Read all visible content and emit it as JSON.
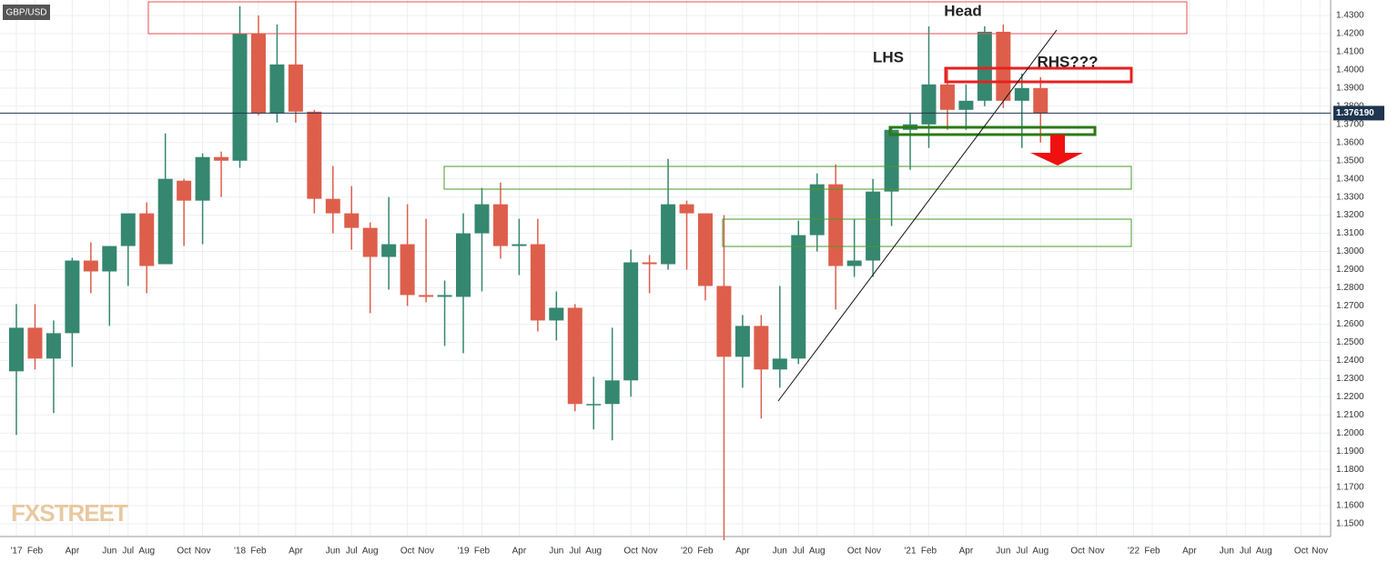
{
  "chart_data": {
    "type": "candlestick",
    "title": "GBP/USD",
    "annotations": [
      "Head",
      "LHS",
      "RHS???"
    ],
    "watermark": "FXSTREET",
    "up_color": "#35876f",
    "down_color": "#dd5f4b",
    "current_price": {
      "value": 1.37619,
      "label": "1.376190"
    },
    "x": [
      0,
      1,
      2,
      3,
      4,
      5,
      6,
      7,
      8,
      9,
      10,
      11,
      12,
      13,
      14,
      15,
      16,
      17,
      18,
      19,
      20,
      21,
      22,
      23,
      24,
      25,
      26,
      27,
      28,
      29,
      30,
      31,
      32,
      33,
      34,
      35,
      36,
      37,
      38,
      39,
      40,
      41,
      42,
      43,
      44,
      45,
      46,
      47,
      48,
      49,
      50,
      51,
      52,
      53,
      54,
      55
    ],
    "open": [
      1.234,
      1.258,
      1.241,
      1.255,
      1.295,
      1.289,
      1.303,
      1.321,
      1.293,
      1.339,
      1.328,
      1.352,
      1.35,
      1.42,
      1.376,
      1.403,
      1.377,
      1.329,
      1.321,
      1.313,
      1.297,
      1.304,
      1.276,
      1.275,
      1.275,
      1.31,
      1.326,
      1.303,
      1.304,
      1.262,
      1.269,
      1.216,
      1.216,
      1.229,
      1.294,
      1.293,
      1.326,
      1.321,
      1.281,
      1.242,
      1.259,
      1.235,
      1.241,
      1.309,
      1.337,
      1.292,
      1.295,
      1.333,
      1.367,
      1.37,
      1.392,
      1.378,
      1.383,
      1.421,
      1.383,
      1.39
    ],
    "high": [
      1.271,
      1.271,
      1.262,
      1.2965,
      1.305,
      1.303,
      1.321,
      1.327,
      1.365,
      1.34,
      1.354,
      1.355,
      1.435,
      1.43,
      1.425,
      1.438,
      1.378,
      1.347,
      1.336,
      1.316,
      1.33,
      1.326,
      1.318,
      1.284,
      1.321,
      1.335,
      1.338,
      1.318,
      1.318,
      1.278,
      1.271,
      1.231,
      1.258,
      1.301,
      1.298,
      1.351,
      1.328,
      1.321,
      1.32,
      1.265,
      1.265,
      1.281,
      1.317,
      1.343,
      1.348,
      1.318,
      1.34,
      1.368,
      1.376,
      1.424,
      1.4,
      1.392,
      1.424,
      1.425,
      1.398,
      1.396
    ],
    "low": [
      1.199,
      1.235,
      1.211,
      1.2365,
      1.277,
      1.259,
      1.281,
      1.277,
      1.293,
      1.303,
      1.304,
      1.33,
      1.346,
      1.375,
      1.371,
      1.371,
      1.321,
      1.31,
      1.301,
      1.266,
      1.279,
      1.27,
      1.272,
      1.248,
      1.244,
      1.278,
      1.296,
      1.287,
      1.256,
      1.251,
      1.212,
      1.202,
      1.196,
      1.22,
      1.277,
      1.29,
      1.29,
      1.273,
      1.141,
      1.225,
      1.208,
      1.225,
      1.238,
      1.3,
      1.268,
      1.286,
      1.286,
      1.314,
      1.345,
      1.357,
      1.367,
      1.367,
      1.38,
      1.379,
      1.357,
      1.36
    ],
    "close": [
      1.258,
      1.241,
      1.255,
      1.295,
      1.289,
      1.303,
      1.321,
      1.292,
      1.34,
      1.328,
      1.352,
      1.35,
      1.42,
      1.376,
      1.403,
      1.377,
      1.329,
      1.321,
      1.313,
      1.297,
      1.304,
      1.276,
      1.275,
      1.276,
      1.31,
      1.326,
      1.303,
      1.304,
      1.262,
      1.269,
      1.216,
      1.216,
      1.229,
      1.294,
      1.293,
      1.326,
      1.321,
      1.281,
      1.242,
      1.259,
      1.235,
      1.241,
      1.309,
      1.337,
      1.292,
      1.295,
      1.333,
      1.367,
      1.37,
      1.392,
      1.378,
      1.383,
      1.421,
      1.383,
      1.39,
      1.376
    ],
    "xlim": [
      -0.88,
      70.58
    ],
    "ylim": [
      1.143,
      1.4385
    ],
    "grid": true,
    "xticks": [
      {
        "value": 0,
        "label": "'17"
      },
      {
        "value": 1,
        "label": "Feb"
      },
      {
        "value": 3,
        "label": "Apr"
      },
      {
        "value": 5,
        "label": "Jun"
      },
      {
        "value": 6,
        "label": "Jul"
      },
      {
        "value": 7,
        "label": "Aug"
      },
      {
        "value": 9,
        "label": "Oct"
      },
      {
        "value": 10,
        "label": "Nov"
      },
      {
        "value": 12,
        "label": "'18"
      },
      {
        "value": 13,
        "label": "Feb"
      },
      {
        "value": 15,
        "label": "Apr"
      },
      {
        "value": 17,
        "label": "Jun"
      },
      {
        "value": 18,
        "label": "Jul"
      },
      {
        "value": 19,
        "label": "Aug"
      },
      {
        "value": 21,
        "label": "Oct"
      },
      {
        "value": 22,
        "label": "Nov"
      },
      {
        "value": 24,
        "label": "'19"
      },
      {
        "value": 25,
        "label": "Feb"
      },
      {
        "value": 27,
        "label": "Apr"
      },
      {
        "value": 29,
        "label": "Jun"
      },
      {
        "value": 30,
        "label": "Jul"
      },
      {
        "value": 31,
        "label": "Aug"
      },
      {
        "value": 33,
        "label": "Oct"
      },
      {
        "value": 34,
        "label": "Nov"
      },
      {
        "value": 36,
        "label": "'20"
      },
      {
        "value": 37,
        "label": "Feb"
      },
      {
        "value": 39,
        "label": "Apr"
      },
      {
        "value": 41,
        "label": "Jun"
      },
      {
        "value": 42,
        "label": "Jul"
      },
      {
        "value": 43,
        "label": "Aug"
      },
      {
        "value": 45,
        "label": "Oct"
      },
      {
        "value": 46,
        "label": "Nov"
      },
      {
        "value": 48,
        "label": "'21"
      },
      {
        "value": 49,
        "label": "Feb"
      },
      {
        "value": 51,
        "label": "Apr"
      },
      {
        "value": 53,
        "label": "Jun"
      },
      {
        "value": 54,
        "label": "Jul"
      },
      {
        "value": 55,
        "label": "Aug"
      },
      {
        "value": 57,
        "label": "Oct"
      },
      {
        "value": 58,
        "label": "Nov"
      },
      {
        "value": 60,
        "label": "'22"
      },
      {
        "value": 61,
        "label": "Feb"
      },
      {
        "value": 63,
        "label": "Apr"
      },
      {
        "value": 65,
        "label": "Jun"
      },
      {
        "value": 66,
        "label": "Jul"
      },
      {
        "value": 67,
        "label": "Aug"
      },
      {
        "value": 69,
        "label": "Oct"
      },
      {
        "value": 70,
        "label": "Nov"
      }
    ],
    "yticks": [
      {
        "value": 1.43,
        "label": "1.4300"
      },
      {
        "value": 1.42,
        "label": "1.4200"
      },
      {
        "value": 1.41,
        "label": "1.4100"
      },
      {
        "value": 1.4,
        "label": "1.4000"
      },
      {
        "value": 1.39,
        "label": "1.3900"
      },
      {
        "value": 1.38,
        "label": "1.3800"
      },
      {
        "value": 1.37,
        "label": "1.3700"
      },
      {
        "value": 1.36,
        "label": "1.3600"
      },
      {
        "value": 1.35,
        "label": "1.3500"
      },
      {
        "value": 1.34,
        "label": "1.3400"
      },
      {
        "value": 1.33,
        "label": "1.3300"
      },
      {
        "value": 1.32,
        "label": "1.3200"
      },
      {
        "value": 1.31,
        "label": "1.3100"
      },
      {
        "value": 1.3,
        "label": "1.3000"
      },
      {
        "value": 1.29,
        "label": "1.2900"
      },
      {
        "value": 1.28,
        "label": "1.2800"
      },
      {
        "value": 1.27,
        "label": "1.2700"
      },
      {
        "value": 1.26,
        "label": "1.2600"
      },
      {
        "value": 1.25,
        "label": "1.2500"
      },
      {
        "value": 1.24,
        "label": "1.2400"
      },
      {
        "value": 1.23,
        "label": "1.2300"
      },
      {
        "value": 1.22,
        "label": "1.2200"
      },
      {
        "value": 1.21,
        "label": "1.2100"
      },
      {
        "value": 1.2,
        "label": "1.2000"
      },
      {
        "value": 1.19,
        "label": "1.1900"
      },
      {
        "value": 1.18,
        "label": "1.1800"
      },
      {
        "value": 1.17,
        "label": "1.1700"
      },
      {
        "value": 1.16,
        "label": "1.1600"
      },
      {
        "value": 1.15,
        "label": "1.1500"
      }
    ]
  }
}
